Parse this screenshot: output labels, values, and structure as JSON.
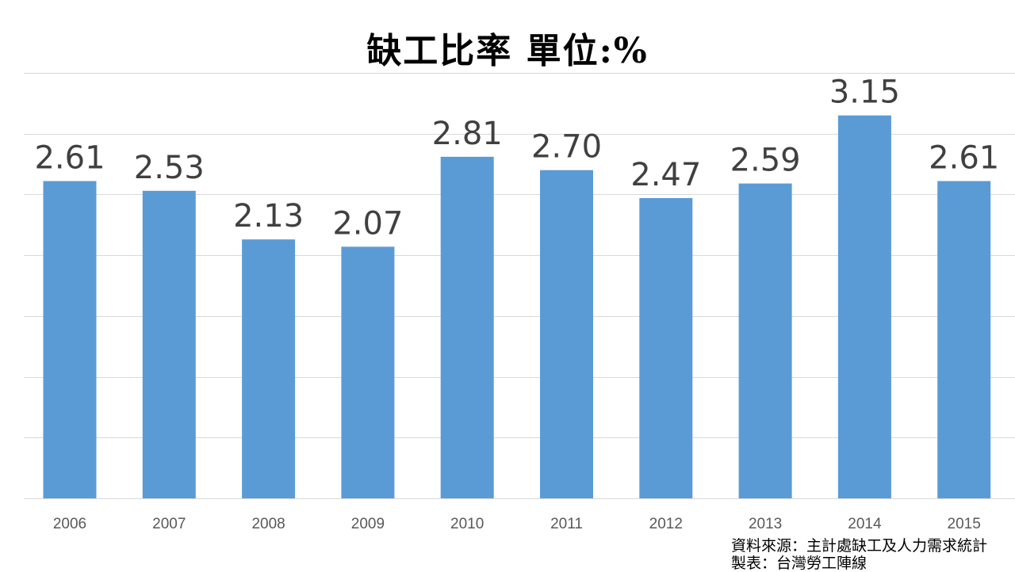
{
  "chart_data": {
    "type": "bar",
    "title": "缺工比率  單位:%",
    "categories": [
      "2006",
      "2007",
      "2008",
      "2009",
      "2010",
      "2011",
      "2012",
      "2013",
      "2014",
      "2015"
    ],
    "values": [
      2.61,
      2.53,
      2.13,
      2.07,
      2.81,
      2.7,
      2.47,
      2.59,
      3.15,
      2.61
    ],
    "value_labels": [
      "2.61",
      "2.53",
      "2.13",
      "2.07",
      "2.81",
      "2.70",
      "2.47",
      "2.59",
      "3.15",
      "2.61"
    ],
    "ylim": [
      0,
      3.5
    ],
    "grid": true,
    "legend": "none",
    "bar_color": "#5B9BD5"
  },
  "source": {
    "line1": "資料來源：主計處缺工及人力需求統計",
    "line2": "製表：台灣勞工陣線"
  }
}
